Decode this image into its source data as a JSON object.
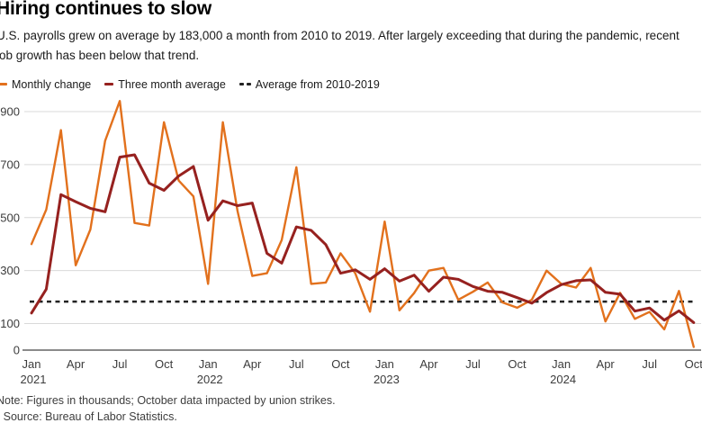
{
  "header": {
    "title": "Hiring continues to slow",
    "subtitle": "U.S. payrolls grew on average by 183,000 a month from 2010 to 2019. After largely exceeding that during the pandemic, recent job growth has been below that trend."
  },
  "legend": [
    {
      "label": "Monthly change",
      "color": "#E2711D",
      "style": "solid"
    },
    {
      "label": "Three month average",
      "color": "#96211F",
      "style": "solid"
    },
    {
      "label": "Average from 2010-2019",
      "color": "#222222",
      "style": "dashed"
    }
  ],
  "footer": {
    "note": "Note: Figures in thousands; October data impacted by union strikes.",
    "source": "· Source: Bureau of Labor Statistics."
  },
  "chart_data": {
    "type": "line",
    "title": "Hiring continues to slow",
    "units": "thousands of jobs",
    "ylim": [
      0,
      960
    ],
    "y_ticks": [
      0,
      100,
      300,
      500,
      700,
      900
    ],
    "grid": true,
    "legend_position": "top",
    "months": [
      "Jan 2021",
      "Feb 2021",
      "Mar 2021",
      "Apr 2021",
      "May 2021",
      "Jun 2021",
      "Jul 2021",
      "Aug 2021",
      "Sep 2021",
      "Oct 2021",
      "Nov 2021",
      "Dec 2021",
      "Jan 2022",
      "Feb 2022",
      "Mar 2022",
      "Apr 2022",
      "May 2022",
      "Jun 2022",
      "Jul 2022",
      "Aug 2022",
      "Sep 2022",
      "Oct 2022",
      "Nov 2022",
      "Dec 2022",
      "Jan 2023",
      "Feb 2023",
      "Mar 2023",
      "Apr 2023",
      "May 2023",
      "Jun 2023",
      "Jul 2023",
      "Aug 2023",
      "Sep 2023",
      "Oct 2023",
      "Nov 2023",
      "Dec 2023",
      "Jan 2024",
      "Feb 2024",
      "Mar 2024",
      "Apr 2024",
      "May 2024",
      "Jun 2024",
      "Jul 2024",
      "Aug 2024",
      "Sep 2024",
      "Oct 2024"
    ],
    "x_ticks": [
      {
        "i": 0,
        "label": "Jan",
        "year": "2021"
      },
      {
        "i": 3,
        "label": "Apr"
      },
      {
        "i": 6,
        "label": "Jul"
      },
      {
        "i": 9,
        "label": "Oct"
      },
      {
        "i": 12,
        "label": "Jan",
        "year": "2022"
      },
      {
        "i": 15,
        "label": "Apr"
      },
      {
        "i": 18,
        "label": "Jul"
      },
      {
        "i": 21,
        "label": "Oct"
      },
      {
        "i": 24,
        "label": "Jan",
        "year": "2023"
      },
      {
        "i": 27,
        "label": "Apr"
      },
      {
        "i": 30,
        "label": "Jul"
      },
      {
        "i": 33,
        "label": "Oct"
      },
      {
        "i": 36,
        "label": "Jan",
        "year": "2024"
      },
      {
        "i": 39,
        "label": "Apr"
      },
      {
        "i": 42,
        "label": "Jul"
      },
      {
        "i": 45,
        "label": "Oct"
      }
    ],
    "series": [
      {
        "name": "Monthly change",
        "color": "#E2711D",
        "width": 2.4,
        "values": [
          400,
          530,
          830,
          320,
          455,
          790,
          940,
          480,
          470,
          860,
          640,
          580,
          250,
          860,
          525,
          280,
          290,
          415,
          690,
          250,
          255,
          365,
          290,
          145,
          485,
          150,
          215,
          300,
          310,
          190,
          220,
          255,
          180,
          160,
          190,
          300,
          250,
          236,
          310,
          108,
          216,
          118,
          144,
          78,
          223,
          12
        ]
      },
      {
        "name": "Three month average",
        "color": "#96211F",
        "width": 3,
        "values": [
          140,
          230,
          587,
          560,
          535,
          522,
          728,
          737,
          630,
          603,
          657,
          693,
          490,
          563,
          545,
          555,
          365,
          328,
          465,
          452,
          398,
          290,
          303,
          267,
          307,
          260,
          283,
          222,
          275,
          267,
          240,
          222,
          218,
          198,
          177,
          217,
          247,
          262,
          265,
          218,
          211,
          147,
          159,
          113,
          148,
          104
        ]
      }
    ],
    "reference_line": {
      "label": "Average from 2010-2019",
      "value": 183,
      "color": "#222222",
      "style": "dashed"
    },
    "colors": {
      "grid": "#D9D9D9",
      "axis": "#8A8A8A",
      "tick_labels": "#3c3c3c"
    }
  }
}
